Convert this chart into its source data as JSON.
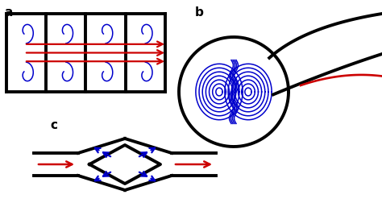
{
  "fig_width": 4.74,
  "fig_height": 2.53,
  "dpi": 100,
  "bg_color": "#ffffff",
  "label_a": "a",
  "label_b": "b",
  "label_c": "c",
  "black": "#000000",
  "blue": "#0000cc",
  "red": "#cc0000"
}
